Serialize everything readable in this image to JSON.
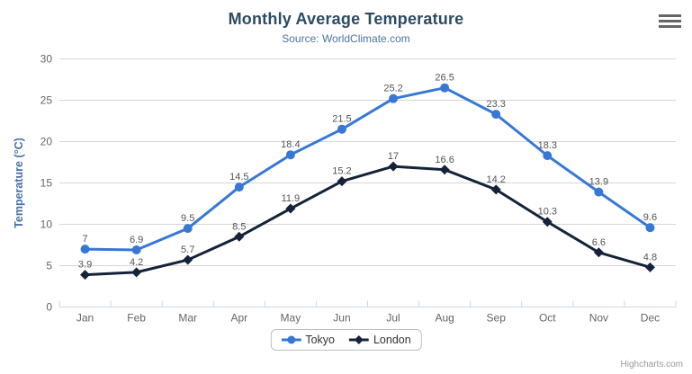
{
  "menu": {
    "icon": "hamburger-icon"
  },
  "credits": {
    "label": "Highcharts.com"
  },
  "colors": {
    "title": "#2c4b63",
    "subtitle": "#4d759e",
    "yaxis_title": "#4572a7",
    "tick_label": "#666666",
    "data_label": "#555555",
    "grid": "#d6d6d6",
    "axis_line": "#ccd6eb",
    "legend_border": "#c0c0c0",
    "legend_text": "#333333",
    "credits_text": "#999999",
    "menu_icon": "#666666",
    "background": "#ffffff"
  },
  "chart_data": {
    "type": "line",
    "title": "Monthly Average Temperature",
    "subtitle": "Source: WorldClimate.com",
    "categories": [
      "Jan",
      "Feb",
      "Mar",
      "Apr",
      "May",
      "Jun",
      "Jul",
      "Aug",
      "Sep",
      "Oct",
      "Nov",
      "Dec"
    ],
    "series": [
      {
        "name": "Tokyo",
        "color": "#3778d7",
        "marker": "circle",
        "values": [
          7,
          6.9,
          9.5,
          14.5,
          18.4,
          21.5,
          25.2,
          26.5,
          23.3,
          18.3,
          13.9,
          9.6
        ]
      },
      {
        "name": "London",
        "color": "#142339",
        "marker": "diamond",
        "values": [
          3.9,
          4.2,
          5.7,
          8.5,
          11.9,
          15.2,
          17,
          16.6,
          14.2,
          10.3,
          6.6,
          4.8
        ]
      }
    ],
    "xlabel": "",
    "ylabel": "Temperature (°C)",
    "ylim": [
      0,
      30
    ],
    "ytick_step": 5,
    "grid": true,
    "data_labels": true,
    "legend_position": "bottom"
  }
}
